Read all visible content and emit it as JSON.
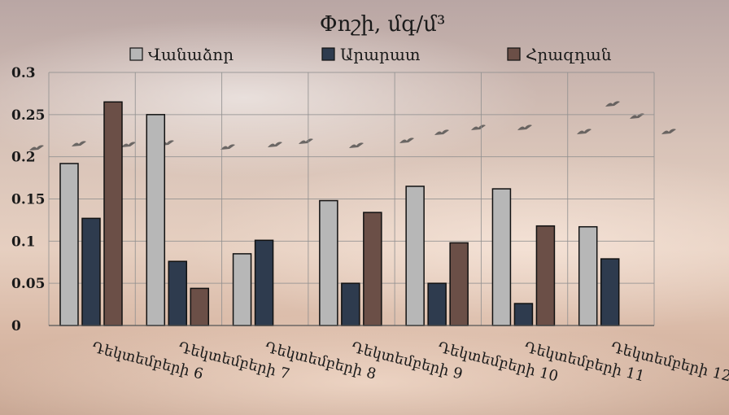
{
  "chart_data": {
    "type": "bar",
    "title": "Փոշի, մգ/մ³",
    "categories": [
      "Դեկտեմբերի 6",
      "Դեկտեմբերի 7",
      "Դեկտեմբերի 8",
      "Դեկտեմբերի 9",
      "Դեկտեմբերի 10",
      "Դեկտեմբերի 11",
      "Դեկտեմբերի 12"
    ],
    "series": [
      {
        "name": "Վանաձոր",
        "color": "#b7b7b7",
        "values": [
          0.192,
          0.25,
          0.085,
          0.148,
          0.165,
          0.162,
          0.117
        ]
      },
      {
        "name": "Արարատ",
        "color": "#2e3b4e",
        "values": [
          0.127,
          0.076,
          0.101,
          0.05,
          0.05,
          0.026,
          0.079
        ]
      },
      {
        "name": "Հրազդան",
        "color": "#6b4f47",
        "values": [
          0.265,
          0.044,
          null,
          0.134,
          0.098,
          0.118,
          null
        ]
      }
    ],
    "ylim": [
      0,
      0.3
    ],
    "yticks": [
      "0",
      "0.05",
      "0.1",
      "0.15",
      "0.2",
      "0.25",
      "0.3"
    ],
    "grid": true,
    "legend_position": "top"
  }
}
